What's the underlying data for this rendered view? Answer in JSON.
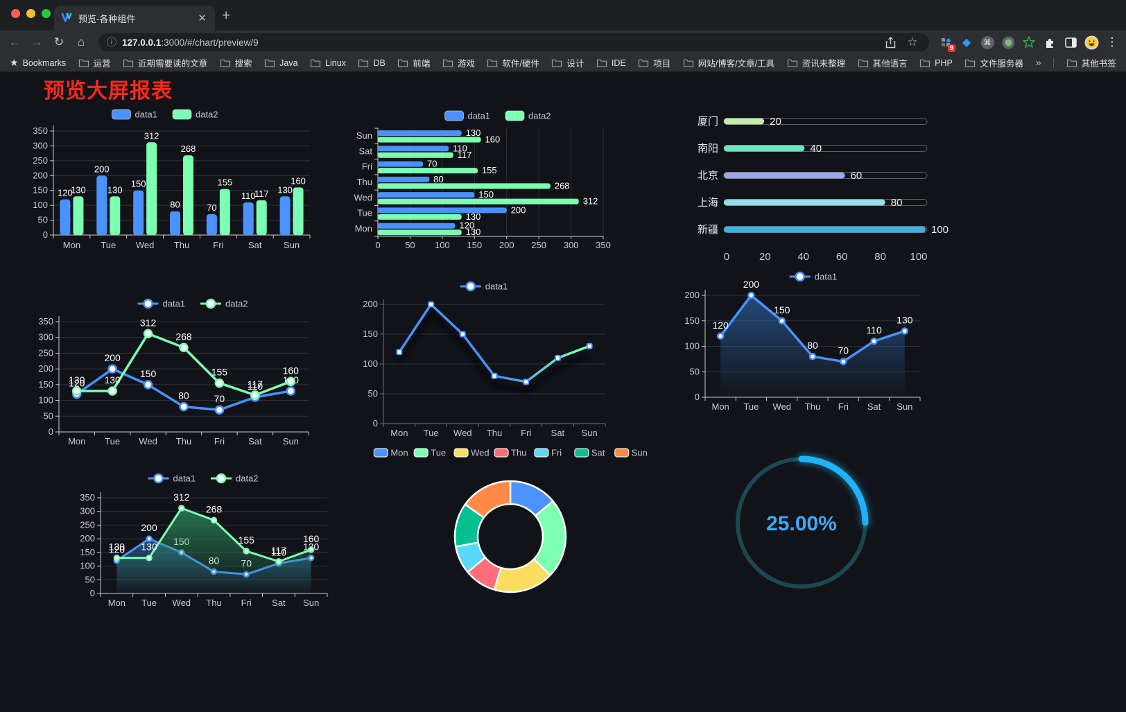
{
  "browser": {
    "tab_title": "预览-各种组件",
    "url_host": "127.0.0.1",
    "url_rest": ":3000/#/chart/preview/9",
    "extension_badge": "9",
    "bookmarks_label": "Bookmarks",
    "bookmarks": [
      "运营",
      "近期需要读的文章",
      "搜索",
      "Java",
      "Linux",
      "DB",
      "前端",
      "游戏",
      "软件/硬件",
      "设计",
      "IDE",
      "项目",
      "网站/博客/文章/工具",
      "资讯未整理",
      "其他语言",
      "PHP",
      "文件服务器"
    ],
    "overflow_chevron": "»",
    "other_bookmarks": "其他书签",
    "icons": {
      "back": "←",
      "forward": "→",
      "reload": "↻",
      "home": "⌂",
      "info": "ⓘ",
      "star": "☆",
      "gem": "◆",
      "command": "⌘",
      "menu": "⋮"
    }
  },
  "page": {
    "title": "预览大屏报表",
    "title_color": "#f5291d",
    "background": "#121318"
  },
  "chart_data": [
    {
      "id": "c1",
      "type": "bar",
      "orientation": "vertical",
      "categories": [
        "Mon",
        "Tue",
        "Wed",
        "Thu",
        "Fri",
        "Sat",
        "Sun"
      ],
      "series": [
        {
          "name": "data1",
          "color": "#4992ff",
          "values": [
            120,
            200,
            150,
            80,
            70,
            110,
            130
          ]
        },
        {
          "name": "data2",
          "color": "#7cffb2",
          "values": [
            130,
            130,
            312,
            268,
            155,
            117,
            160
          ]
        }
      ],
      "ylim": [
        0,
        350
      ],
      "ytick_step": 50,
      "grid": "horizontal",
      "legend_position": "top"
    },
    {
      "id": "c2",
      "type": "bar",
      "orientation": "horizontal",
      "categories": [
        "Mon",
        "Tue",
        "Wed",
        "Thu",
        "Fri",
        "Sat",
        "Sun"
      ],
      "categories_top_to_bottom": [
        "Sun",
        "Sat",
        "Fri",
        "Thu",
        "Wed",
        "Tue",
        "Mon"
      ],
      "series": [
        {
          "name": "data1",
          "color": "#4992ff",
          "values": [
            120,
            200,
            150,
            80,
            70,
            110,
            130
          ]
        },
        {
          "name": "data2",
          "color": "#7cffb2",
          "values": [
            130,
            130,
            312,
            268,
            155,
            117,
            160
          ]
        }
      ],
      "xlim": [
        0,
        350
      ],
      "xtick_step": 50,
      "grid": "vertical",
      "legend_position": "top"
    },
    {
      "id": "c3",
      "type": "bar",
      "subtype": "progress",
      "categories": [
        "厦门",
        "南阳",
        "北京",
        "上海",
        "新疆"
      ],
      "values": [
        20,
        40,
        60,
        80,
        100
      ],
      "colors": [
        "#c4ebad",
        "#6be6c1",
        "#a0a7e6",
        "#96dee8",
        "#3fb1e3"
      ],
      "xlim": [
        0,
        100
      ],
      "xticks": [
        0,
        20,
        40,
        60,
        80,
        100
      ]
    },
    {
      "id": "c4",
      "type": "line",
      "categories": [
        "Mon",
        "Tue",
        "Wed",
        "Thu",
        "Fri",
        "Sat",
        "Sun"
      ],
      "series": [
        {
          "name": "data1",
          "color": "#4992ff",
          "values": [
            120,
            200,
            150,
            80,
            70,
            110,
            130
          ]
        },
        {
          "name": "data2",
          "color": "#7cffb2",
          "values": [
            130,
            130,
            312,
            268,
            155,
            117,
            160
          ]
        }
      ],
      "ylim": [
        0,
        350
      ],
      "ytick_step": 50,
      "labels": true,
      "legend_position": "top"
    },
    {
      "id": "c5",
      "type": "line",
      "categories": [
        "Mon",
        "Tue",
        "Wed",
        "Thu",
        "Fri",
        "Sat",
        "Sun"
      ],
      "series": [
        {
          "name": "data1",
          "gradient": [
            "#4992ff",
            "#7cffb2"
          ],
          "values": [
            120,
            200,
            150,
            80,
            70,
            110,
            130
          ]
        }
      ],
      "ylim": [
        0,
        200
      ],
      "ytick_step": 50,
      "labels": false,
      "shadow": true,
      "legend_position": "top"
    },
    {
      "id": "c6",
      "type": "area",
      "categories": [
        "Mon",
        "Tue",
        "Wed",
        "Thu",
        "Fri",
        "Sat",
        "Sun"
      ],
      "series": [
        {
          "name": "data1",
          "color": "#4992ff",
          "area": "#2b65a8",
          "values": [
            120,
            200,
            150,
            80,
            70,
            110,
            130
          ]
        }
      ],
      "ylim": [
        0,
        200
      ],
      "ytick_step": 50,
      "labels": true,
      "legend_position": "top"
    },
    {
      "id": "c7",
      "type": "area",
      "categories": [
        "Mon",
        "Tue",
        "Wed",
        "Thu",
        "Fri",
        "Sat",
        "Sun"
      ],
      "series": [
        {
          "name": "data1",
          "color": "#4992ff",
          "area": "#2b65a8",
          "values": [
            120,
            200,
            150,
            80,
            70,
            110,
            130
          ]
        },
        {
          "name": "data2",
          "color": "#7cffb2",
          "area": "#2f9e68",
          "values": [
            130,
            130,
            312,
            268,
            155,
            117,
            160
          ]
        }
      ],
      "ylim": [
        0,
        350
      ],
      "ytick_step": 50,
      "labels": true,
      "legend_position": "top"
    },
    {
      "id": "c8",
      "type": "pie",
      "donut": true,
      "categories": [
        "Mon",
        "Tue",
        "Wed",
        "Thu",
        "Fri",
        "Sat",
        "Sun"
      ],
      "values": [
        120,
        200,
        150,
        80,
        70,
        110,
        130
      ],
      "colors": [
        "#4992ff",
        "#7cffb2",
        "#fddd60",
        "#ff6e76",
        "#58d9f9",
        "#05c091",
        "#ff8a45"
      ],
      "border_color": "#ffffff",
      "legend_position": "top"
    },
    {
      "id": "c9",
      "type": "gauge",
      "value": 25,
      "label": "25.00%",
      "color": "#1fb2f8",
      "track_color": "#1d4752",
      "text_color": "#3fa9f2"
    }
  ]
}
